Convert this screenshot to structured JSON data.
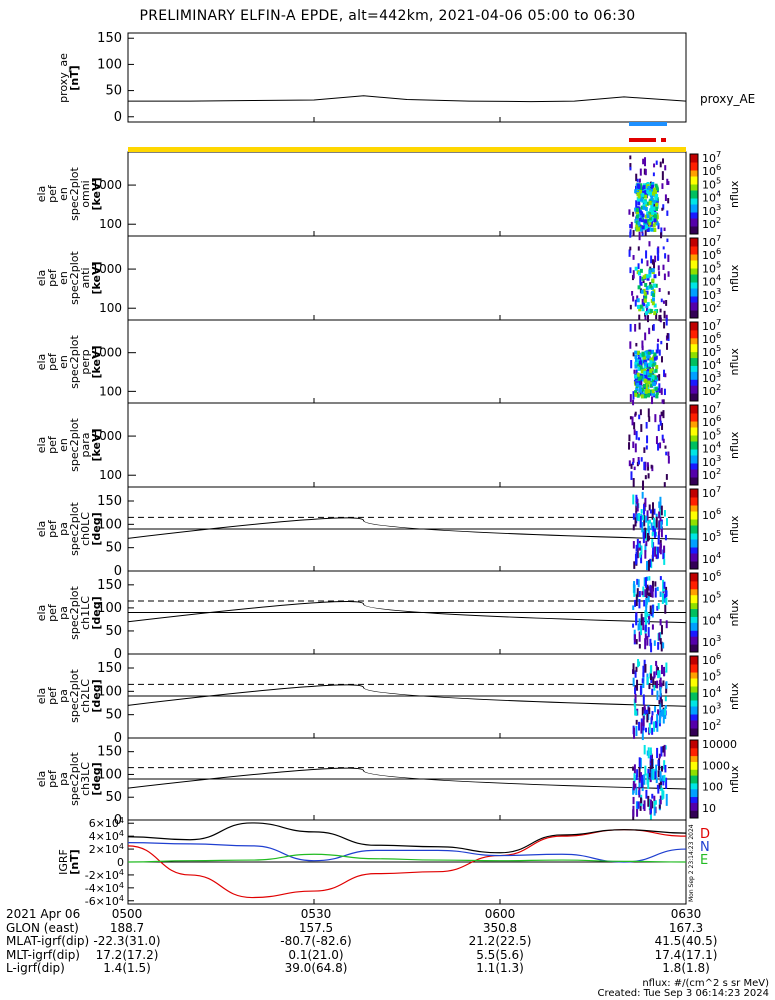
{
  "title": "PRELIMINARY ELFIN-A EPDE, alt=442km, 2021-04-06 05:00 to 06:30",
  "colors": {
    "orbit_bar": "#ffd700",
    "ion_bar": "#1e90ff",
    "elec_bar": "#e00000",
    "grf_d": "#e00000",
    "grf_n": "#1f3fd0",
    "grf_e": "#22bb22"
  },
  "chart_data": [
    {
      "type": "line",
      "panel": "proxy_ae",
      "ylabel": [
        "proxy_ae",
        "[nT]"
      ],
      "right_label": "proxy_AE",
      "ylim": [
        -10,
        160
      ],
      "yticks": [
        "0",
        "50",
        "100",
        "150"
      ],
      "x_minutes": [
        0,
        10,
        20,
        30,
        38,
        45,
        55,
        65,
        72,
        80,
        90
      ],
      "values": [
        30,
        30,
        31,
        32,
        40,
        33,
        30,
        29,
        30,
        38,
        30
      ]
    },
    {
      "type": "heatmap",
      "panel": "omni",
      "ylabel": [
        "ela",
        "pef",
        "en",
        "spec2plot",
        "omni",
        "[keV]"
      ],
      "yscale": "log",
      "yticks": [
        "100",
        "1000"
      ],
      "colorbar": {
        "label": "nflux",
        "ticks": [
          "10^7",
          "10^6",
          "10^5",
          "10^4",
          "10^3",
          "10^2"
        ]
      }
    },
    {
      "type": "heatmap",
      "panel": "anti",
      "ylabel": [
        "ela",
        "pef",
        "en",
        "spec2plot",
        "anti",
        "[keV]"
      ],
      "yscale": "log",
      "yticks": [
        "100",
        "1000"
      ],
      "colorbar": {
        "label": "nflux",
        "ticks": [
          "10^7",
          "10^6",
          "10^5",
          "10^4",
          "10^3",
          "10^2"
        ]
      }
    },
    {
      "type": "heatmap",
      "panel": "perp",
      "ylabel": [
        "ela",
        "pef",
        "en",
        "spec2plot",
        "perp",
        "[keV]"
      ],
      "yscale": "log",
      "yticks": [
        "100",
        "1000"
      ],
      "colorbar": {
        "label": "nflux",
        "ticks": [
          "10^7",
          "10^6",
          "10^5",
          "10^4",
          "10^3",
          "10^2"
        ]
      }
    },
    {
      "type": "heatmap",
      "panel": "para",
      "ylabel": [
        "ela",
        "pef",
        "en",
        "spec2plot",
        "para",
        "[keV]"
      ],
      "yscale": "log",
      "yticks": [
        "100",
        "1000"
      ],
      "colorbar": {
        "label": "nflux",
        "ticks": [
          "10^7",
          "10^6",
          "10^5",
          "10^4",
          "10^3",
          "10^2"
        ]
      }
    },
    {
      "type": "heatmap",
      "panel": "ch0LC",
      "ylabel": [
        "ela",
        "pef",
        "pa",
        "spec2plot",
        "ch0LC",
        "[deg]"
      ],
      "ylim": [
        0,
        180
      ],
      "yticks": [
        "0",
        "50",
        "100",
        "150"
      ],
      "colorbar": {
        "label": "nflux",
        "ticks": [
          "10^7",
          "10^6",
          "10^5",
          "10^4"
        ]
      }
    },
    {
      "type": "heatmap",
      "panel": "ch1LC",
      "ylabel": [
        "ela",
        "pef",
        "pa",
        "spec2plot",
        "ch1LC",
        "[deg]"
      ],
      "ylim": [
        0,
        180
      ],
      "yticks": [
        "0",
        "50",
        "100",
        "150"
      ],
      "colorbar": {
        "label": "nflux",
        "ticks": [
          "10^6",
          "10^5",
          "10^4",
          "10^3"
        ]
      }
    },
    {
      "type": "heatmap",
      "panel": "ch2LC",
      "ylabel": [
        "ela",
        "pef",
        "pa",
        "spec2plot",
        "ch2LC",
        "[deg]"
      ],
      "ylim": [
        0,
        180
      ],
      "yticks": [
        "0",
        "50",
        "100",
        "150"
      ],
      "colorbar": {
        "label": "nflux",
        "ticks": [
          "10^6",
          "10^5",
          "10^4",
          "10^3",
          "10^2"
        ]
      }
    },
    {
      "type": "heatmap",
      "panel": "ch3LC",
      "ylabel": [
        "ela",
        "pef",
        "pa",
        "spec2plot",
        "ch3LC",
        "[deg]"
      ],
      "ylim": [
        0,
        180
      ],
      "yticks": [
        "0",
        "50",
        "100",
        "150"
      ],
      "colorbar": {
        "label": "nflux",
        "ticks": [
          "10000",
          "1000",
          "100",
          "10"
        ]
      }
    },
    {
      "type": "line",
      "panel": "IGRF",
      "ylabel": [
        "IGRF",
        "[nT]"
      ],
      "ylim": [
        -65000,
        65000
      ],
      "yticks": [
        "6x10^4",
        "4x10^4",
        "2x10^4",
        "0",
        "-2x10^4",
        "-4x10^4",
        "-6x10^4"
      ],
      "x_minutes": [
        0,
        10,
        20,
        30,
        40,
        50,
        60,
        70,
        80,
        90
      ],
      "series": [
        {
          "name": "D",
          "values": [
            25000,
            -20000,
            -55000,
            -45000,
            -18000,
            -15000,
            10000,
            40000,
            50000,
            40000
          ]
        },
        {
          "name": "N",
          "values": [
            30000,
            28000,
            25000,
            2000,
            18000,
            18000,
            10000,
            12000,
            0,
            20000
          ]
        },
        {
          "name": "E",
          "values": [
            0,
            2000,
            3000,
            12000,
            5000,
            3000,
            2000,
            3000,
            1000,
            0
          ]
        }
      ]
    }
  ],
  "x_axis": {
    "labels": [
      "0500",
      "0530",
      "0600",
      "0630"
    ],
    "minutes": [
      0,
      30,
      60,
      90
    ]
  },
  "bottom_table": {
    "rows": [
      {
        "label": "2021 Apr 06",
        "values": [
          "0500",
          "0530",
          "0600",
          "0630"
        ]
      },
      {
        "label": "GLON (east)",
        "values": [
          "188.7",
          "157.5",
          "350.8",
          "167.3"
        ]
      },
      {
        "label": "MLAT-igrf(dip)",
        "values": [
          "-22.3(31.0)",
          "-80.7(-82.6)",
          "21.2(22.5)",
          "41.5(40.5)"
        ]
      },
      {
        "label": "MLT-igrf(dip)",
        "values": [
          "17.2(17.2)",
          "0.1(21.0)",
          "5.5(5.6)",
          "17.4(17.1)"
        ]
      },
      {
        "label": "L-igrf(dip)",
        "values": [
          "1.4(1.5)",
          "39.0(64.8)",
          "1.1(1.3)",
          "1.8(1.8)"
        ]
      }
    ]
  },
  "footer": {
    "units": "nflux: #/(cm^2 s sr MeV)",
    "created": "Created: Tue Sep  3 06:14:23 2024"
  },
  "side_stamp": "Mon Sep  2 23:14:23 2024"
}
